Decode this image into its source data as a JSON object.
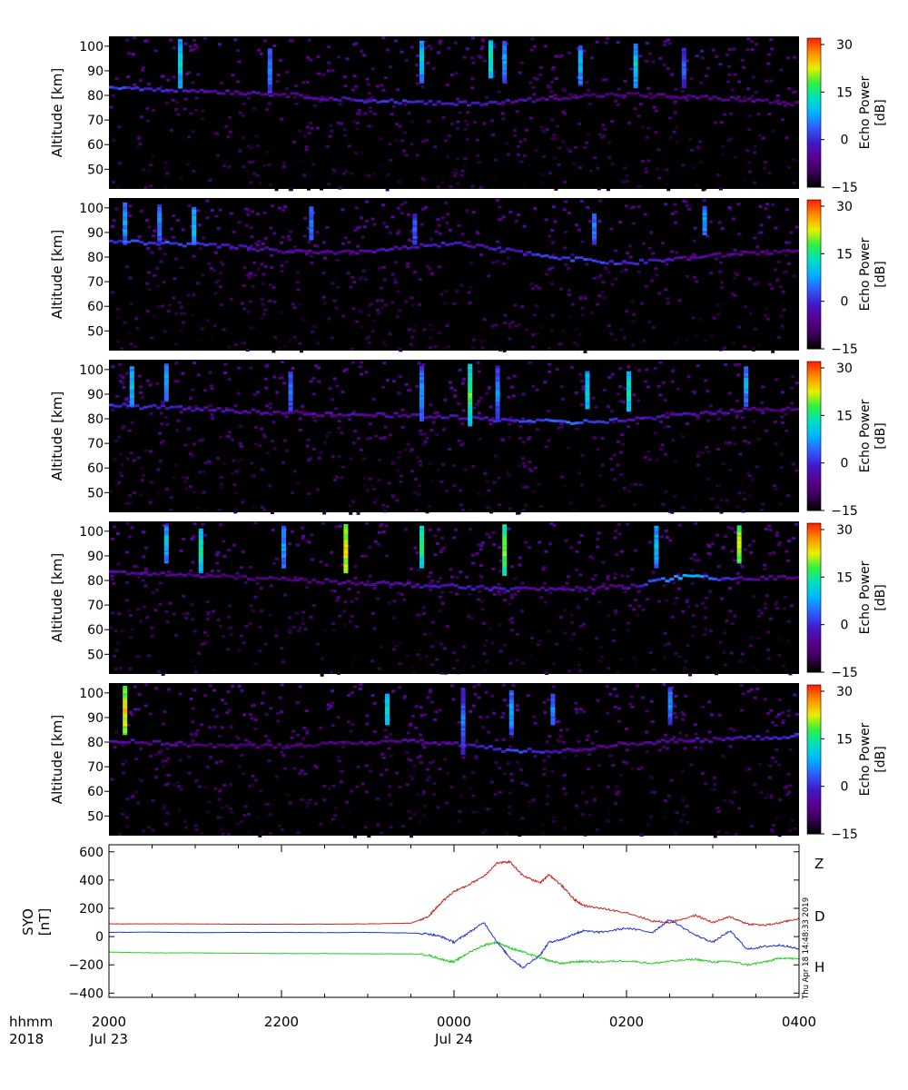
{
  "colors": {
    "background": "#ffffff",
    "panel_background": "#000000",
    "Z": "#cc2222",
    "D": "#22cc22",
    "H": "#2233cc"
  },
  "colorscale": [
    "#000000",
    "#3a0058",
    "#5a0090",
    "#3f1cc8",
    "#2f5cff",
    "#00b4ff",
    "#00e0c0",
    "#30f040",
    "#e8f000",
    "#ff9000",
    "#ff2000"
  ],
  "time_axis": {
    "row1_label": "hhmm",
    "row2_label": "2018",
    "ticks": [
      {
        "label": "2000",
        "date": "Jul 23"
      },
      {
        "label": "2200",
        "date": ""
      },
      {
        "label": "0000",
        "date": "Jul 24"
      },
      {
        "label": "0200",
        "date": ""
      },
      {
        "label": "0400",
        "date": ""
      }
    ]
  },
  "timestamp": "Thu Apr 18 14:48:33 2019",
  "chart_data": [
    {
      "type": "heatmap",
      "panel": 1,
      "ylabel": "Altitude [km]",
      "ylim": [
        42,
        104
      ],
      "y_ticks": [
        "50",
        "60",
        "70",
        "80",
        "90",
        "100"
      ],
      "colorbar": {
        "label": "Echo Power",
        "unit": "[dB]",
        "range": [
          -15,
          32
        ],
        "ticks": [
          "30",
          "15",
          "0",
          "−15"
        ]
      },
      "layers": [
        {
          "alt": [
            84,
            83,
            82,
            81,
            79,
            78,
            77,
            78,
            80,
            81,
            80,
            79,
            77
          ],
          "power": [
            2,
            -2,
            -4,
            -6,
            -3,
            0,
            -2,
            -4,
            -6,
            -8,
            -7,
            -6,
            -8
          ]
        }
      ],
      "streaks": [
        {
          "t": 0.1,
          "top": 103,
          "bottom": 84,
          "power": 12
        },
        {
          "t": 0.23,
          "top": 100,
          "bottom": 82,
          "power": 6
        },
        {
          "t": 0.45,
          "top": 103,
          "bottom": 86,
          "power": 10
        },
        {
          "t": 0.55,
          "top": 103,
          "bottom": 88,
          "power": 14
        },
        {
          "t": 0.57,
          "top": 103,
          "bottom": 86,
          "power": 8
        },
        {
          "t": 0.68,
          "top": 101,
          "bottom": 85,
          "power": 9
        },
        {
          "t": 0.76,
          "top": 102,
          "bottom": 84,
          "power": 11
        },
        {
          "t": 0.83,
          "top": 100,
          "bottom": 84,
          "power": 4
        }
      ]
    },
    {
      "type": "heatmap",
      "panel": 2,
      "ylabel": "Altitude [km]",
      "ylim": [
        42,
        104
      ],
      "y_ticks": [
        "50",
        "60",
        "70",
        "80",
        "90",
        "100"
      ],
      "colorbar": {
        "label": "Echo Power",
        "unit": "[dB]",
        "range": [
          -15,
          32
        ],
        "ticks": [
          "30",
          "15",
          "0",
          "−15"
        ]
      },
      "layers": [
        {
          "alt": [
            87,
            86,
            85,
            83,
            82,
            84,
            86,
            83,
            80,
            78,
            80,
            82,
            83
          ],
          "power": [
            0,
            2,
            -1,
            -4,
            -6,
            -3,
            -2,
            -2,
            2,
            0,
            -4,
            -6,
            -7
          ]
        }
      ],
      "streaks": [
        {
          "t": 0.02,
          "top": 103,
          "bottom": 86,
          "power": 8
        },
        {
          "t": 0.07,
          "top": 102,
          "bottom": 87,
          "power": 6
        },
        {
          "t": 0.12,
          "top": 101,
          "bottom": 86,
          "power": 10
        },
        {
          "t": 0.29,
          "top": 101,
          "bottom": 88,
          "power": 5
        },
        {
          "t": 0.44,
          "top": 98,
          "bottom": 86,
          "power": 4
        },
        {
          "t": 0.7,
          "top": 98,
          "bottom": 86,
          "power": 6
        },
        {
          "t": 0.86,
          "top": 101,
          "bottom": 90,
          "power": 8
        }
      ]
    },
    {
      "type": "heatmap",
      "panel": 3,
      "ylabel": "Altitude [km]",
      "ylim": [
        42,
        104
      ],
      "y_ticks": [
        "50",
        "60",
        "70",
        "80",
        "90",
        "100"
      ],
      "colorbar": {
        "label": "Echo Power",
        "unit": "[dB]",
        "range": [
          -15,
          32
        ],
        "ticks": [
          "30",
          "15",
          "0",
          "−15"
        ]
      },
      "layers": [
        {
          "alt": [
            86,
            85,
            84,
            83,
            82,
            82,
            81,
            80,
            79,
            80,
            82,
            84,
            85
          ],
          "power": [
            0,
            -2,
            -4,
            -6,
            -5,
            -4,
            -3,
            0,
            4,
            -2,
            -4,
            -6,
            -7
          ]
        }
      ],
      "streaks": [
        {
          "t": 0.03,
          "top": 102,
          "bottom": 86,
          "power": 10
        },
        {
          "t": 0.08,
          "top": 103,
          "bottom": 88,
          "power": 9
        },
        {
          "t": 0.26,
          "top": 100,
          "bottom": 84,
          "power": 6
        },
        {
          "t": 0.45,
          "top": 102,
          "bottom": 80,
          "power": 8
        },
        {
          "t": 0.52,
          "top": 103,
          "bottom": 78,
          "power": 18
        },
        {
          "t": 0.56,
          "top": 102,
          "bottom": 80,
          "power": 6
        },
        {
          "t": 0.69,
          "top": 100,
          "bottom": 85,
          "power": 12
        },
        {
          "t": 0.75,
          "top": 100,
          "bottom": 84,
          "power": 14
        },
        {
          "t": 0.92,
          "top": 102,
          "bottom": 86,
          "power": 8
        }
      ]
    },
    {
      "type": "heatmap",
      "panel": 4,
      "ylabel": "Altitude [km]",
      "ylim": [
        42,
        104
      ],
      "y_ticks": [
        "50",
        "60",
        "70",
        "80",
        "90",
        "100"
      ],
      "colorbar": {
        "label": "Echo Power",
        "unit": "[dB]",
        "range": [
          -15,
          32
        ],
        "ticks": [
          "30",
          "15",
          "0",
          "−15"
        ]
      },
      "layers": [
        {
          "alt": [
            84,
            83,
            82,
            81,
            80,
            79,
            78,
            77,
            77,
            78,
            82,
            81,
            82
          ],
          "power": [
            -4,
            -6,
            -8,
            -7,
            -6,
            -4,
            -2,
            -3,
            -5,
            -6,
            10,
            -4,
            -6
          ]
        }
      ],
      "streaks": [
        {
          "t": 0.08,
          "top": 103,
          "bottom": 88,
          "power": 10
        },
        {
          "t": 0.13,
          "top": 102,
          "bottom": 84,
          "power": 14
        },
        {
          "t": 0.25,
          "top": 103,
          "bottom": 86,
          "power": 8
        },
        {
          "t": 0.34,
          "top": 103,
          "bottom": 84,
          "power": 24
        },
        {
          "t": 0.45,
          "top": 103,
          "bottom": 86,
          "power": 16
        },
        {
          "t": 0.57,
          "top": 103,
          "bottom": 83,
          "power": 20
        },
        {
          "t": 0.79,
          "top": 103,
          "bottom": 86,
          "power": 10
        },
        {
          "t": 0.91,
          "top": 103,
          "bottom": 88,
          "power": 22
        }
      ]
    },
    {
      "type": "heatmap",
      "panel": 5,
      "ylabel": "Altitude [km]",
      "ylim": [
        42,
        104
      ],
      "y_ticks": [
        "50",
        "60",
        "70",
        "80",
        "90",
        "100"
      ],
      "colorbar": {
        "label": "Echo Power",
        "unit": "[dB]",
        "range": [
          -15,
          32
        ],
        "ticks": [
          "30",
          "15",
          "0",
          "−15"
        ]
      },
      "layers": [
        {
          "alt": [
            81,
            80,
            79,
            79,
            80,
            81,
            80,
            77,
            77,
            80,
            81,
            82,
            83
          ],
          "power": [
            -4,
            -6,
            -8,
            -8,
            -7,
            -6,
            -5,
            2,
            -4,
            -6,
            -5,
            -4,
            0
          ]
        }
      ],
      "streaks": [
        {
          "t": 0.02,
          "top": 103,
          "bottom": 84,
          "power": 24
        },
        {
          "t": 0.4,
          "top": 100,
          "bottom": 88,
          "power": 12
        },
        {
          "t": 0.51,
          "top": 103,
          "bottom": 76,
          "power": 6
        },
        {
          "t": 0.58,
          "top": 102,
          "bottom": 84,
          "power": 8
        },
        {
          "t": 0.64,
          "top": 100,
          "bottom": 88,
          "power": 6
        },
        {
          "t": 0.81,
          "top": 103,
          "bottom": 88,
          "power": 6
        }
      ]
    },
    {
      "type": "line",
      "panel": 6,
      "ylabel": "SYO",
      "yunit": "[nT]",
      "ylim": [
        -430,
        650
      ],
      "y_ticks": [
        "600",
        "400",
        "200",
        "0",
        "−200",
        "−400"
      ],
      "x_hours": [
        0,
        0.5,
        1,
        1.5,
        2,
        2.5,
        3,
        3.5,
        3.7,
        3.85,
        4.0,
        4.15,
        4.35,
        4.5,
        4.65,
        4.8,
        5.0,
        5.1,
        5.25,
        5.4,
        5.5,
        5.7,
        6.0,
        6.3,
        6.5,
        6.8,
        7.0,
        7.2,
        7.4,
        7.6,
        7.8,
        8.0
      ],
      "series": [
        {
          "name": "Z",
          "color": "#cc2222",
          "values": [
            90,
            90,
            90,
            88,
            88,
            88,
            90,
            95,
            140,
            240,
            320,
            360,
            430,
            520,
            530,
            430,
            380,
            440,
            360,
            260,
            220,
            200,
            170,
            110,
            100,
            150,
            100,
            140,
            90,
            80,
            100,
            130
          ]
        },
        {
          "name": "D",
          "color": "#22cc22",
          "values": [
            -110,
            -115,
            -115,
            -118,
            -120,
            -120,
            -122,
            -122,
            -130,
            -160,
            -180,
            -120,
            -60,
            -40,
            -80,
            -110,
            -150,
            -170,
            -190,
            -180,
            -175,
            -180,
            -170,
            -190,
            -175,
            -160,
            -180,
            -175,
            -200,
            -180,
            -150,
            -160
          ]
        },
        {
          "name": "H",
          "color": "#2233cc",
          "values": [
            30,
            32,
            28,
            30,
            30,
            28,
            30,
            25,
            20,
            0,
            -40,
            20,
            100,
            -40,
            -150,
            -220,
            -130,
            -40,
            -20,
            20,
            40,
            30,
            60,
            30,
            120,
            10,
            -40,
            40,
            -90,
            -70,
            -60,
            -90
          ]
        }
      ]
    }
  ]
}
